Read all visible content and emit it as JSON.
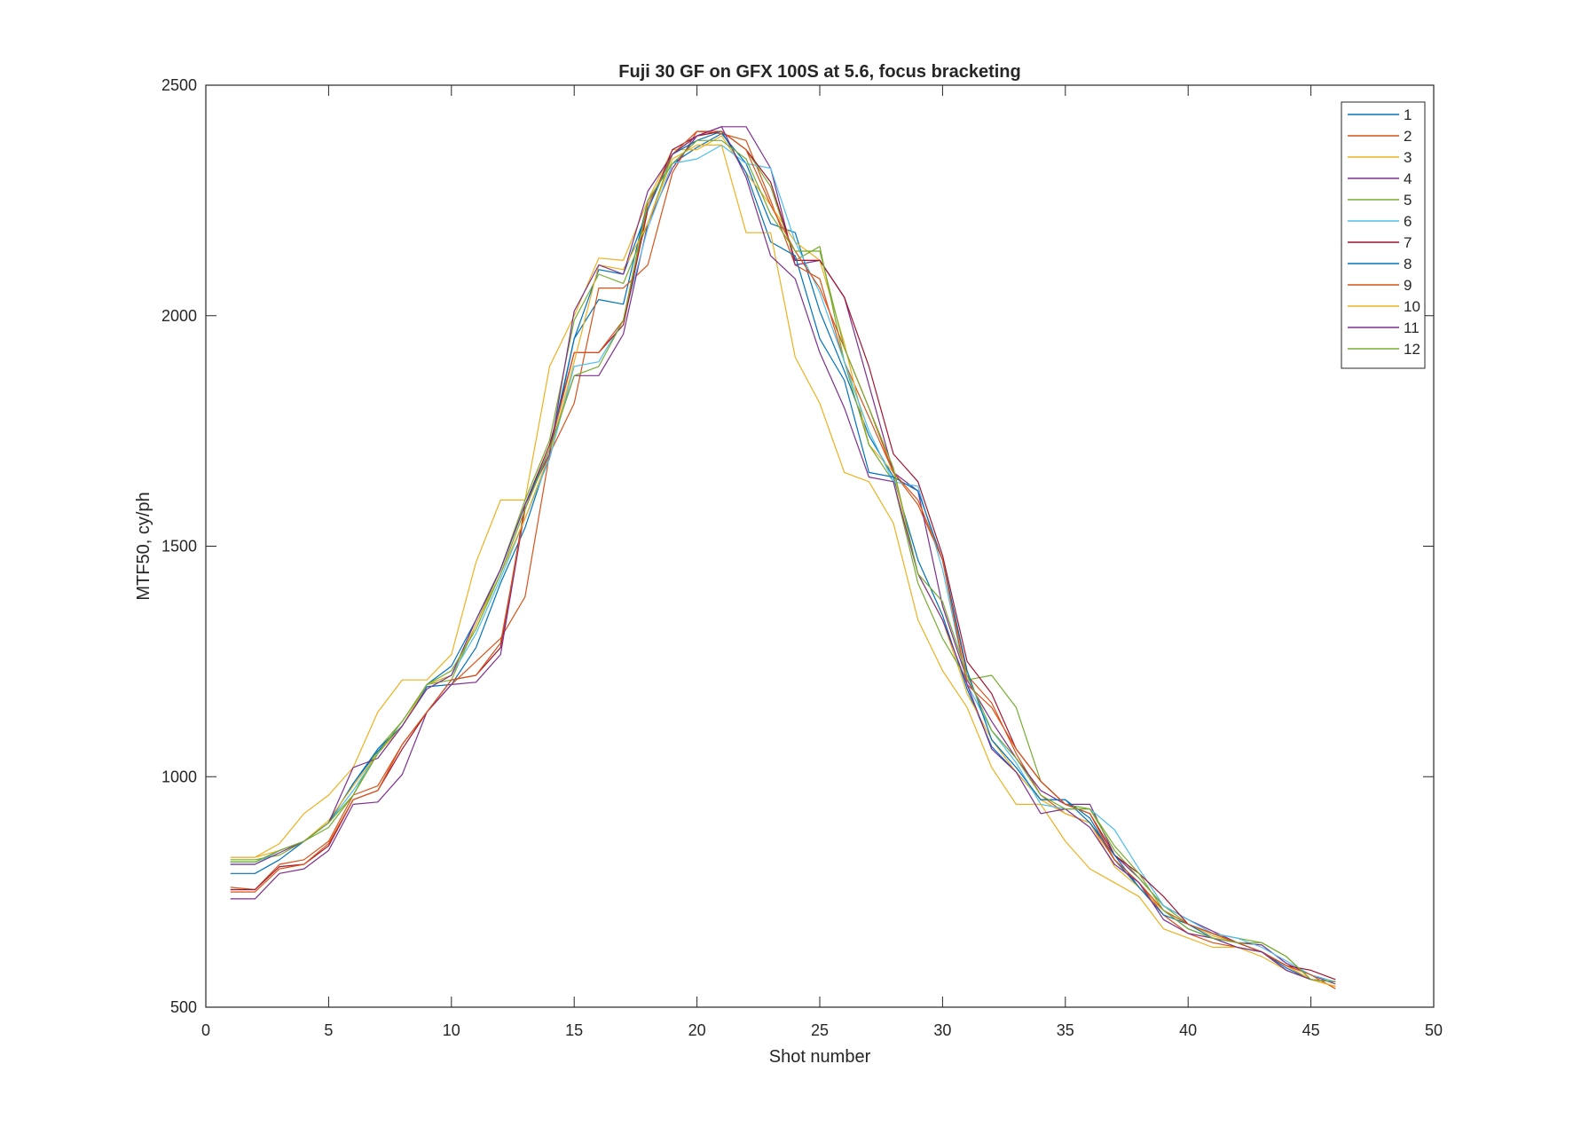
{
  "chart_data": {
    "type": "line",
    "title": "Fuji 30 GF on GFX 100S at 5.6, focus bracketing",
    "xlabel": "Shot number",
    "ylabel": "MTF50, cy/ph",
    "xlim": [
      0,
      50
    ],
    "ylim": [
      500,
      2500
    ],
    "xticks": [
      0,
      5,
      10,
      15,
      20,
      25,
      30,
      35,
      40,
      45,
      50
    ],
    "yticks": [
      500,
      1000,
      1500,
      2000,
      2500
    ],
    "grid": false,
    "legend_position": "top-right",
    "x": [
      1,
      2,
      3,
      4,
      5,
      6,
      7,
      8,
      9,
      10,
      11,
      12,
      13,
      14,
      15,
      16,
      17,
      18,
      19,
      20,
      21,
      22,
      23,
      24,
      25,
      26,
      27,
      28,
      29,
      30,
      31,
      32,
      33,
      34,
      35,
      36,
      37,
      38,
      39,
      40,
      41,
      42,
      43,
      44,
      45,
      46
    ],
    "series": [
      {
        "name": "1",
        "color": "#0072BD",
        "values": [
          790,
          790,
          820,
          860,
          900,
          985,
          1055,
          1110,
          1195,
          1200,
          1280,
          1420,
          1540,
          1700,
          1950,
          2035,
          2025,
          2250,
          2330,
          2365,
          2395,
          2330,
          2200,
          2180,
          2010,
          1880,
          1740,
          1650,
          1470,
          1350,
          1190,
          1065,
          1010,
          950,
          950,
          910,
          820,
          760,
          710,
          670,
          650,
          630,
          620,
          585,
          560,
          555
        ]
      },
      {
        "name": "2",
        "color": "#D95319",
        "values": [
          760,
          755,
          810,
          820,
          860,
          960,
          980,
          1070,
          1140,
          1200,
          1250,
          1300,
          1390,
          1700,
          1810,
          2060,
          2060,
          2110,
          2310,
          2400,
          2395,
          2380,
          2250,
          2110,
          2080,
          1900,
          1780,
          1660,
          1590,
          1470,
          1220,
          1160,
          1050,
          960,
          920,
          900,
          820,
          770,
          700,
          660,
          640,
          630,
          620,
          590,
          560,
          545
        ]
      },
      {
        "name": "3",
        "color": "#EDB120",
        "values": [
          825,
          825,
          855,
          920,
          960,
          1020,
          1140,
          1210,
          1210,
          1265,
          1465,
          1600,
          1600,
          1890,
          2000,
          2125,
          2120,
          2250,
          2360,
          2360,
          2390,
          2310,
          2240,
          2160,
          2120,
          1940,
          1720,
          1660,
          1440,
          1340,
          1180,
          1080,
          1010,
          950,
          920,
          900,
          805,
          760,
          710,
          680,
          655,
          640,
          620,
          590,
          560,
          545
        ]
      },
      {
        "name": "4",
        "color": "#7E2F8E",
        "values": [
          735,
          735,
          790,
          800,
          840,
          940,
          945,
          1005,
          1140,
          1200,
          1205,
          1265,
          1580,
          1710,
          1870,
          1870,
          1960,
          2200,
          2320,
          2390,
          2410,
          2410,
          2320,
          2110,
          2120,
          2040,
          1850,
          1660,
          1620,
          1370,
          1210,
          1120,
          1040,
          970,
          940,
          940,
          830,
          780,
          720,
          690,
          665,
          640,
          635,
          595,
          570,
          550
        ]
      },
      {
        "name": "5",
        "color": "#77AC30",
        "values": [
          820,
          820,
          830,
          860,
          890,
          960,
          1060,
          1120,
          1200,
          1210,
          1330,
          1450,
          1600,
          1730,
          1990,
          2090,
          2070,
          2200,
          2350,
          2390,
          2400,
          2360,
          2280,
          2120,
          2150,
          1900,
          1720,
          1640,
          1420,
          1300,
          1210,
          1220,
          1150,
          990,
          940,
          930,
          840,
          780,
          720,
          680,
          660,
          650,
          640,
          610,
          560,
          555
        ]
      },
      {
        "name": "6",
        "color": "#4DBEEE",
        "values": [
          810,
          810,
          840,
          860,
          900,
          970,
          1050,
          1110,
          1200,
          1220,
          1310,
          1430,
          1560,
          1690,
          1890,
          1900,
          1990,
          2190,
          2330,
          2340,
          2370,
          2330,
          2320,
          2160,
          2050,
          1900,
          1750,
          1640,
          1630,
          1450,
          1200,
          1100,
          1030,
          940,
          930,
          930,
          885,
          800,
          720,
          690,
          660,
          650,
          630,
          600,
          570,
          555
        ]
      },
      {
        "name": "7",
        "color": "#A2142F",
        "values": [
          755,
          755,
          805,
          810,
          850,
          950,
          970,
          1060,
          1140,
          1210,
          1220,
          1280,
          1590,
          1720,
          1920,
          1920,
          1980,
          2230,
          2360,
          2390,
          2400,
          2360,
          2290,
          2120,
          2120,
          2040,
          1890,
          1700,
          1640,
          1480,
          1250,
          1180,
          1060,
          990,
          940,
          920,
          830,
          790,
          740,
          680,
          660,
          640,
          620,
          590,
          580,
          560
        ]
      },
      {
        "name": "8",
        "color": "#0072BD",
        "values": [
          815,
          815,
          840,
          860,
          900,
          985,
          1060,
          1110,
          1200,
          1240,
          1340,
          1450,
          1590,
          1710,
          1950,
          2100,
          2090,
          2230,
          2350,
          2380,
          2400,
          2310,
          2160,
          2130,
          1950,
          1860,
          1660,
          1650,
          1620,
          1470,
          1230,
          1080,
          1020,
          950,
          950,
          900,
          830,
          760,
          700,
          680,
          650,
          640,
          620,
          580,
          560,
          555
        ]
      },
      {
        "name": "9",
        "color": "#D95319",
        "values": [
          750,
          750,
          800,
          810,
          855,
          950,
          970,
          1070,
          1140,
          1210,
          1220,
          1290,
          1580,
          1710,
          1920,
          1920,
          1990,
          2240,
          2350,
          2400,
          2400,
          2360,
          2240,
          2140,
          2060,
          1930,
          1800,
          1660,
          1600,
          1470,
          1200,
          1150,
          1060,
          990,
          940,
          920,
          820,
          770,
          710,
          680,
          660,
          640,
          620,
          590,
          570,
          540
        ]
      },
      {
        "name": "10",
        "color": "#EDB120",
        "values": [
          825,
          825,
          840,
          860,
          905,
          980,
          1050,
          1110,
          1200,
          1220,
          1330,
          1440,
          1560,
          1700,
          1900,
          2110,
          2100,
          2200,
          2340,
          2370,
          2370,
          2180,
          2180,
          1910,
          1810,
          1660,
          1640,
          1550,
          1340,
          1230,
          1150,
          1020,
          940,
          940,
          860,
          800,
          770,
          740,
          670,
          650,
          630,
          630,
          610,
          580,
          560,
          545
        ]
      },
      {
        "name": "11",
        "color": "#7E2F8E",
        "values": [
          810,
          810,
          835,
          860,
          900,
          1020,
          1040,
          1110,
          1190,
          1220,
          1340,
          1450,
          1590,
          1700,
          2010,
          2110,
          2090,
          2270,
          2350,
          2390,
          2410,
          2300,
          2130,
          2080,
          1920,
          1800,
          1650,
          1640,
          1440,
          1340,
          1200,
          1060,
          1010,
          920,
          930,
          890,
          810,
          770,
          690,
          660,
          650,
          630,
          620,
          580,
          560,
          555
        ]
      },
      {
        "name": "12",
        "color": "#77AC30",
        "values": [
          815,
          815,
          840,
          860,
          900,
          960,
          1050,
          1120,
          1200,
          1230,
          1320,
          1440,
          1580,
          1710,
          1870,
          1890,
          1990,
          2250,
          2330,
          2380,
          2380,
          2340,
          2220,
          2140,
          2140,
          1930,
          1800,
          1670,
          1440,
          1380,
          1220,
          1100,
          1040,
          960,
          930,
          930,
          850,
          790,
          710,
          670,
          650,
          640,
          640,
          610,
          560,
          555
        ]
      }
    ]
  }
}
